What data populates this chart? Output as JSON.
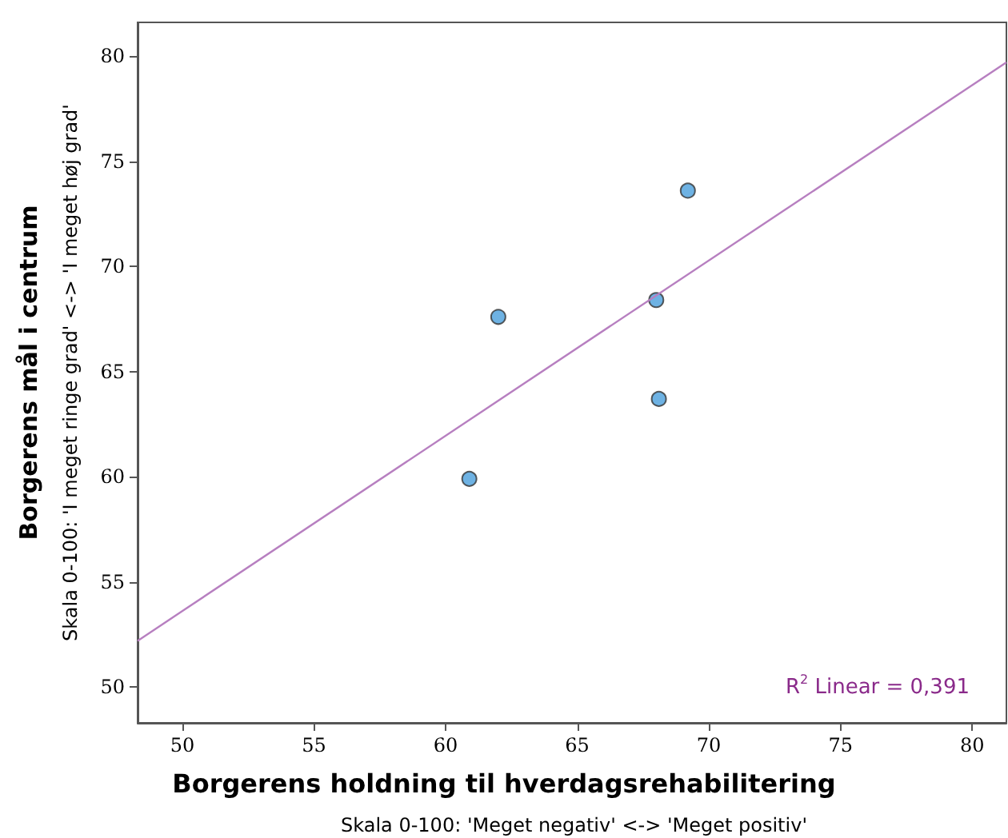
{
  "chart_data": {
    "type": "scatter",
    "xlabel": "Borgerens holdning til hverdagsrehabilitering",
    "ylabel": "Borgerens mål i centrum",
    "annotations": [
      "Skala 0-100: 'Meget negativ' <-> 'Meget positiv'",
      "Skala 0-100: 'I meget ringe grad' <-> 'I meget høj grad'",
      "R$^{2}$ Linear = 0,391"
    ],
    "x": [
      69.2,
      68.0,
      62.0,
      68.1,
      60.9
    ],
    "series": [
      {
        "color": "#4a9fdc",
        "values": [
          73.6,
          68.4,
          67.6,
          63.7,
          59.9
        ]
      },
      {
        "type": "line",
        "marker": "none",
        "color": "#b77fc0",
        "x": [
          48.3,
          81.3
        ],
        "values": [
          52.2,
          79.7
        ]
      }
    ],
    "xlim": [
      48.3,
      81.3
    ],
    "ylim": [
      48.3,
      81.6
    ],
    "xticks": [
      50,
      55,
      60,
      65,
      70,
      75,
      80
    ],
    "yticks": [
      50,
      55,
      60,
      65,
      70,
      75,
      80
    ],
    "grid": false,
    "marker": "circle"
  }
}
